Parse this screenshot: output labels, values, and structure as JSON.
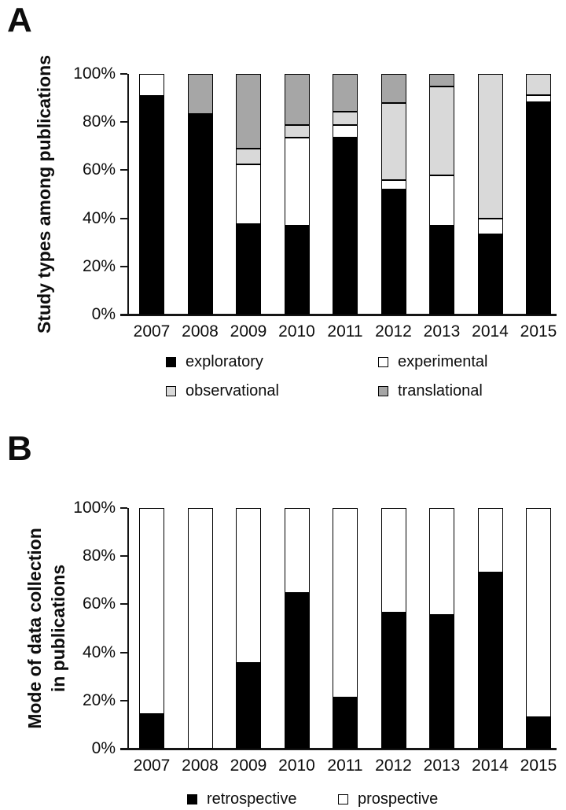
{
  "panels": [
    {
      "label": "A"
    },
    {
      "label": "B"
    }
  ],
  "colors": {
    "black": "#000000",
    "white": "#ffffff",
    "light_gray": "#d9d9d9",
    "dark_gray": "#a6a6a6"
  },
  "chart_data": [
    {
      "type": "bar",
      "stacked": true,
      "title": "Study types among publications",
      "ylabel": "Study types among publications",
      "xlabel": "",
      "ylim": [
        0,
        100
      ],
      "grid": false,
      "legend_position": "bottom",
      "y_tick_labels": [
        "0%",
        "20%",
        "40%",
        "60%",
        "80%",
        "100%"
      ],
      "categories": [
        "2007",
        "2008",
        "2009",
        "2010",
        "2011",
        "2012",
        "2013",
        "2014",
        "2015"
      ],
      "series": [
        {
          "name": "exploratory",
          "color": "#000000",
          "values": [
            90.9,
            83.3,
            37.5,
            36.8,
            73.7,
            52.0,
            36.8,
            33.3,
            88.2
          ]
        },
        {
          "name": "experimental",
          "color": "#ffffff",
          "values": [
            9.1,
            0,
            25.0,
            36.8,
            5.3,
            4.0,
            21.1,
            6.7,
            2.9
          ]
        },
        {
          "name": "observational",
          "color": "#d9d9d9",
          "values": [
            0,
            0,
            6.3,
            5.3,
            5.3,
            32.0,
            36.8,
            60.0,
            8.9
          ]
        },
        {
          "name": "translational",
          "color": "#a6a6a6",
          "values": [
            0,
            16.7,
            31.2,
            21.1,
            15.8,
            12.0,
            5.3,
            0,
            0
          ]
        }
      ]
    },
    {
      "type": "bar",
      "stacked": true,
      "title": "Mode of data collection in publications",
      "ylabel": "Mode of data collection\nin publications",
      "xlabel": "",
      "ylim": [
        0,
        100
      ],
      "grid": false,
      "legend_position": "bottom",
      "y_tick_labels": [
        "0%",
        "20%",
        "40%",
        "60%",
        "80%",
        "100%"
      ],
      "categories": [
        "2007",
        "2008",
        "2009",
        "2010",
        "2011",
        "2012",
        "2013",
        "2014",
        "2015"
      ],
      "series": [
        {
          "name": "retrospective",
          "color": "#000000",
          "values": [
            14.3,
            0,
            35.7,
            64.7,
            21.1,
            56.5,
            55.6,
            73.3,
            13.0
          ]
        },
        {
          "name": "prospective",
          "color": "#ffffff",
          "values": [
            85.7,
            100,
            64.3,
            35.3,
            78.9,
            43.5,
            44.4,
            26.7,
            87.0
          ]
        }
      ]
    }
  ]
}
